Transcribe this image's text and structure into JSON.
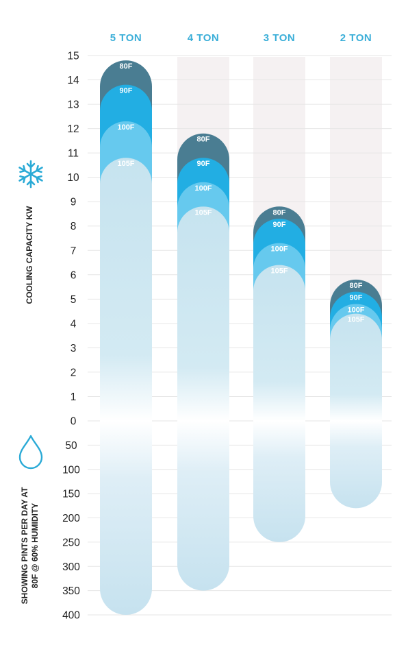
{
  "chart_data": {
    "type": "bar",
    "categories": [
      "5 TON",
      "4 TON",
      "3 TON",
      "2 TON"
    ],
    "cooling_axis": {
      "label": "COOLING CAPACITY KW",
      "icon": "snowflake-icon",
      "ticks": [
        15,
        14,
        13,
        12,
        11,
        10,
        9,
        8,
        7,
        6,
        5,
        4,
        3,
        2,
        1,
        0
      ],
      "ylim": [
        0,
        15
      ]
    },
    "dehumidification_axis": {
      "label_lines": [
        "SHOWING PINTS PER DAY AT",
        "80F @ 60% HUMIDITY"
      ],
      "icon": "water-drop-icon",
      "ticks": [
        50,
        100,
        150,
        200,
        250,
        300,
        350,
        400
      ],
      "ylim": [
        0,
        400
      ]
    },
    "series": [
      {
        "name": "80F",
        "color": "#4a7d92",
        "values": [
          14.8,
          11.8,
          8.8,
          5.8
        ]
      },
      {
        "name": "90F",
        "color": "#22aee3",
        "values": [
          13.8,
          10.8,
          8.3,
          5.3
        ]
      },
      {
        "name": "100F",
        "color": "#66c9ee",
        "values": [
          12.3,
          9.8,
          7.3,
          4.8
        ]
      },
      {
        "name": "105F",
        "color": "#c8e4f0",
        "values": [
          10.8,
          8.8,
          6.4,
          4.4
        ]
      }
    ],
    "pints_per_day": {
      "values": [
        400,
        350,
        250,
        180
      ],
      "color": "#c8e4f0"
    },
    "grid": true
  }
}
